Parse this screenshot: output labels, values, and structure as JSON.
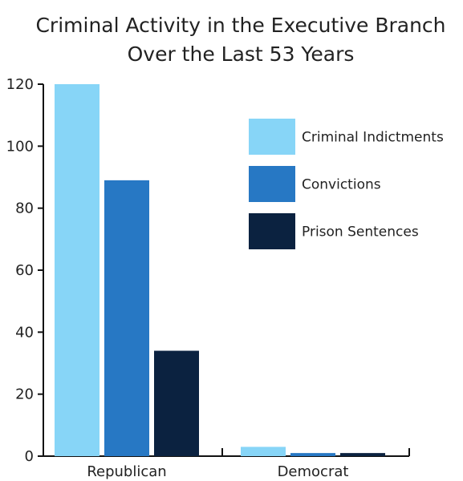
{
  "chart_data": {
    "type": "bar",
    "title": "Criminal Activity in the Executive Branch",
    "subtitle": "Over the Last 53 Years",
    "categories": [
      "Republican",
      "Democrat"
    ],
    "series": [
      {
        "name": "Criminal Indictments",
        "values": [
          120,
          3
        ],
        "color": "#87D5F7"
      },
      {
        "name": "Convictions",
        "values": [
          89,
          1
        ],
        "color": "#2778C4"
      },
      {
        "name": "Prison Sentences",
        "values": [
          34,
          1
        ],
        "color": "#0B2240"
      }
    ],
    "ylim": [
      0,
      120
    ],
    "yticks": [
      "0",
      "20",
      "40",
      "60",
      "80",
      "100",
      "120"
    ],
    "xlabel": "",
    "ylabel": "",
    "grid": false,
    "legend_position": "top-right"
  }
}
